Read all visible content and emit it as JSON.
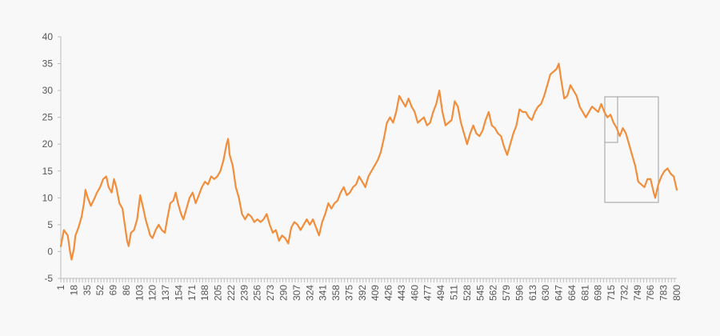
{
  "chart_data": {
    "type": "line",
    "title": "",
    "xlabel": "",
    "ylabel": "",
    "ylim": [
      -5,
      40
    ],
    "yticks": [
      -5,
      0,
      5,
      10,
      15,
      20,
      25,
      30,
      35,
      40
    ],
    "xlim": [
      1,
      800
    ],
    "xtick_labels": [
      1,
      18,
      35,
      52,
      69,
      86,
      103,
      120,
      137,
      154,
      171,
      188,
      205,
      222,
      239,
      256,
      273,
      290,
      307,
      324,
      341,
      358,
      375,
      392,
      409,
      426,
      443,
      460,
      477,
      494,
      511,
      528,
      545,
      562,
      579,
      596,
      613,
      630,
      647,
      664,
      681,
      698,
      715,
      732,
      749,
      766,
      783,
      800
    ],
    "grid": false,
    "legend": "none",
    "series_color": "#f28e3b",
    "series": [
      {
        "points": [
          [
            1,
            1
          ],
          [
            5,
            4
          ],
          [
            10,
            3
          ],
          [
            13,
            0
          ],
          [
            15,
            -1.5
          ],
          [
            18,
            0.5
          ],
          [
            20,
            3
          ],
          [
            24,
            4.5
          ],
          [
            28,
            6.5
          ],
          [
            31,
            9
          ],
          [
            33,
            11.5
          ],
          [
            36,
            10
          ],
          [
            40,
            8.5
          ],
          [
            45,
            10
          ],
          [
            48,
            11
          ],
          [
            52,
            12
          ],
          [
            56,
            13.5
          ],
          [
            60,
            14
          ],
          [
            63,
            12
          ],
          [
            67,
            11
          ],
          [
            70,
            13.5
          ],
          [
            73,
            12
          ],
          [
            77,
            9
          ],
          [
            81,
            8
          ],
          [
            84,
            5
          ],
          [
            87,
            2
          ],
          [
            89,
            1
          ],
          [
            92,
            3.5
          ],
          [
            96,
            4
          ],
          [
            100,
            6
          ],
          [
            104,
            10.5
          ],
          [
            108,
            8
          ],
          [
            111,
            6
          ],
          [
            114,
            4.5
          ],
          [
            117,
            3
          ],
          [
            120,
            2.5
          ],
          [
            124,
            4
          ],
          [
            128,
            5
          ],
          [
            132,
            4
          ],
          [
            136,
            3.5
          ],
          [
            139,
            6
          ],
          [
            143,
            9
          ],
          [
            147,
            9.5
          ],
          [
            150,
            11
          ],
          [
            153,
            9
          ],
          [
            157,
            7
          ],
          [
            160,
            6
          ],
          [
            164,
            8
          ],
          [
            168,
            10
          ],
          [
            172,
            11
          ],
          [
            176,
            9
          ],
          [
            180,
            10.5
          ],
          [
            184,
            12
          ],
          [
            188,
            13
          ],
          [
            192,
            12.5
          ],
          [
            196,
            14
          ],
          [
            200,
            13.5
          ],
          [
            204,
            14
          ],
          [
            208,
            15
          ],
          [
            212,
            17
          ],
          [
            216,
            20
          ],
          [
            218,
            21
          ],
          [
            220,
            18
          ],
          [
            224,
            16
          ],
          [
            228,
            12
          ],
          [
            232,
            10
          ],
          [
            236,
            7
          ],
          [
            240,
            6
          ],
          [
            244,
            7
          ],
          [
            248,
            6.5
          ],
          [
            252,
            5.5
          ],
          [
            256,
            6
          ],
          [
            260,
            5.5
          ],
          [
            264,
            6
          ],
          [
            268,
            7
          ],
          [
            272,
            5
          ],
          [
            276,
            3.5
          ],
          [
            280,
            4
          ],
          [
            284,
            2
          ],
          [
            288,
            3
          ],
          [
            292,
            2.5
          ],
          [
            296,
            1.5
          ],
          [
            300,
            4.5
          ],
          [
            304,
            5.5
          ],
          [
            308,
            5
          ],
          [
            312,
            4
          ],
          [
            316,
            5
          ],
          [
            320,
            6
          ],
          [
            324,
            5
          ],
          [
            328,
            6
          ],
          [
            332,
            4.5
          ],
          [
            336,
            3
          ],
          [
            340,
            5.5
          ],
          [
            344,
            7
          ],
          [
            348,
            9
          ],
          [
            352,
            8
          ],
          [
            356,
            9
          ],
          [
            360,
            9.5
          ],
          [
            364,
            11
          ],
          [
            368,
            12
          ],
          [
            372,
            10.5
          ],
          [
            376,
            11
          ],
          [
            380,
            12
          ],
          [
            384,
            12.5
          ],
          [
            388,
            14
          ],
          [
            392,
            13
          ],
          [
            396,
            12
          ],
          [
            400,
            14
          ],
          [
            404,
            15
          ],
          [
            408,
            16
          ],
          [
            412,
            17
          ],
          [
            416,
            18.5
          ],
          [
            420,
            21
          ],
          [
            424,
            24
          ],
          [
            428,
            25
          ],
          [
            432,
            24
          ],
          [
            436,
            26
          ],
          [
            440,
            29
          ],
          [
            444,
            28
          ],
          [
            448,
            27
          ],
          [
            452,
            28.5
          ],
          [
            456,
            27
          ],
          [
            460,
            26
          ],
          [
            464,
            24
          ],
          [
            468,
            24.5
          ],
          [
            472,
            25
          ],
          [
            476,
            23.5
          ],
          [
            480,
            24
          ],
          [
            484,
            26
          ],
          [
            488,
            27.5
          ],
          [
            492,
            30
          ],
          [
            496,
            26
          ],
          [
            500,
            23.5
          ],
          [
            504,
            24
          ],
          [
            508,
            24.5
          ],
          [
            512,
            28
          ],
          [
            516,
            27
          ],
          [
            520,
            24
          ],
          [
            524,
            22
          ],
          [
            528,
            20
          ],
          [
            532,
            22
          ],
          [
            536,
            23.5
          ],
          [
            540,
            22
          ],
          [
            544,
            21.5
          ],
          [
            548,
            22.5
          ],
          [
            552,
            24.5
          ],
          [
            556,
            26
          ],
          [
            560,
            23.5
          ],
          [
            564,
            23
          ],
          [
            568,
            22
          ],
          [
            572,
            21.5
          ],
          [
            576,
            19.5
          ],
          [
            580,
            18
          ],
          [
            584,
            20
          ],
          [
            588,
            22
          ],
          [
            592,
            23.5
          ],
          [
            596,
            26.5
          ],
          [
            600,
            26
          ],
          [
            604,
            26
          ],
          [
            608,
            25
          ],
          [
            612,
            24.5
          ],
          [
            616,
            26
          ],
          [
            620,
            27
          ],
          [
            624,
            27.5
          ],
          [
            628,
            29
          ],
          [
            632,
            31
          ],
          [
            636,
            33
          ],
          [
            640,
            33.5
          ],
          [
            644,
            34
          ],
          [
            647,
            35
          ],
          [
            650,
            32
          ],
          [
            654,
            28.5
          ],
          [
            658,
            29
          ],
          [
            662,
            31
          ],
          [
            666,
            30
          ],
          [
            670,
            29
          ],
          [
            674,
            27
          ],
          [
            678,
            26
          ],
          [
            682,
            25
          ],
          [
            686,
            26
          ],
          [
            690,
            27
          ],
          [
            694,
            26.5
          ],
          [
            698,
            26
          ],
          [
            702,
            27.5
          ],
          [
            706,
            26
          ],
          [
            710,
            25
          ],
          [
            714,
            25.5
          ],
          [
            718,
            24
          ],
          [
            722,
            23
          ],
          [
            726,
            21.5
          ],
          [
            730,
            23
          ],
          [
            734,
            22
          ],
          [
            738,
            20
          ],
          [
            742,
            18
          ],
          [
            746,
            16
          ],
          [
            750,
            13
          ],
          [
            754,
            12.5
          ],
          [
            758,
            12
          ],
          [
            762,
            13.5
          ],
          [
            766,
            13.5
          ],
          [
            770,
            11
          ],
          [
            772,
            10
          ],
          [
            776,
            12.5
          ],
          [
            780,
            14
          ],
          [
            784,
            15
          ],
          [
            788,
            15.5
          ],
          [
            792,
            14.5
          ],
          [
            796,
            14
          ],
          [
            800,
            11.5
          ]
        ]
      }
    ]
  }
}
